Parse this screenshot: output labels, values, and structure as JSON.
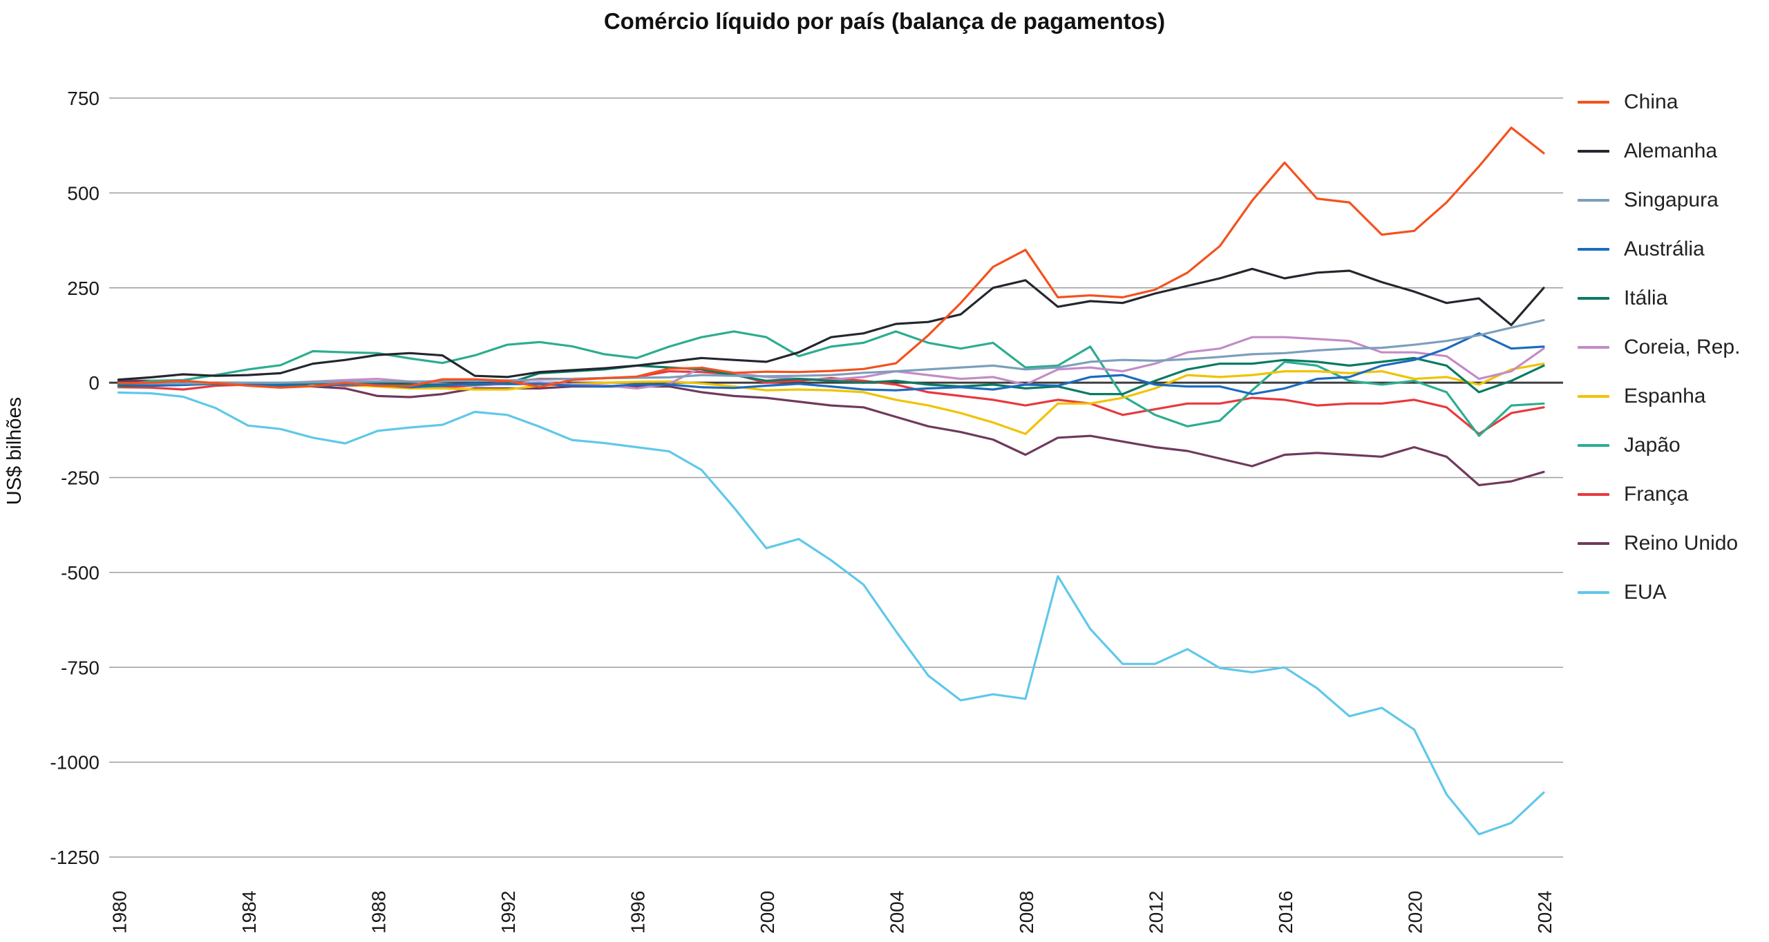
{
  "chart_data": {
    "type": "line",
    "title": "Comércio líquido por país (balança de pagamentos)",
    "ylabel": "US$ bilhões",
    "x_start": 1980,
    "x_end": 2024,
    "x_tick_labels": [
      1980,
      1984,
      1988,
      1992,
      1996,
      2000,
      2004,
      2008,
      2012,
      2016,
      2020,
      2024
    ],
    "y_ticks": [
      750,
      500,
      250,
      0,
      -250,
      -500,
      -750,
      -1000,
      -1250
    ],
    "ylim": [
      -1250,
      750
    ],
    "grid": true,
    "legend_position": "right",
    "colors": {
      "background": "#FFFFFF",
      "gridline": "#9d9d9d",
      "zero_line": "#3d3d3d",
      "text": "#1a1a1a"
    },
    "series": [
      {
        "name": "China",
        "color": "#F4511E",
        "values": [
          -2,
          0,
          5,
          -1,
          -8,
          -13,
          -9,
          -1,
          -8,
          -9,
          9,
          9,
          5,
          -11,
          7,
          12,
          16,
          37,
          39,
          26,
          29,
          28,
          31,
          36,
          51,
          125,
          210,
          305,
          350,
          225,
          230,
          225,
          245,
          290,
          360,
          480,
          580,
          485,
          475,
          390,
          400,
          475,
          570,
          672,
          605
        ]
      },
      {
        "name": "Alemanha",
        "color": "#23272E",
        "values": [
          8,
          14,
          22,
          18,
          20,
          25,
          50,
          60,
          73,
          78,
          72,
          18,
          15,
          28,
          33,
          38,
          45,
          55,
          65,
          60,
          55,
          80,
          120,
          130,
          155,
          160,
          180,
          250,
          270,
          200,
          215,
          210,
          235,
          255,
          275,
          300,
          275,
          290,
          295,
          265,
          240,
          210,
          222,
          152,
          250
        ]
      },
      {
        "name": "Singapura",
        "color": "#7C9FBC",
        "values": [
          -1,
          -2,
          -2,
          -1,
          0,
          0,
          1,
          2,
          3,
          3,
          4,
          5,
          6,
          8,
          10,
          12,
          13,
          14,
          20,
          18,
          17,
          18,
          20,
          26,
          30,
          35,
          40,
          45,
          35,
          40,
          55,
          60,
          58,
          62,
          68,
          75,
          78,
          85,
          90,
          92,
          100,
          110,
          125,
          145,
          165
        ]
      },
      {
        "name": "Austrália",
        "color": "#1C6BBF",
        "values": [
          -4,
          -8,
          -6,
          -2,
          -4,
          -8,
          -9,
          -5,
          -6,
          -12,
          -8,
          -2,
          -4,
          -3,
          -8,
          -10,
          -5,
          -5,
          -12,
          -14,
          -8,
          -3,
          -10,
          -18,
          -20,
          -15,
          -12,
          -18,
          -5,
          -8,
          15,
          20,
          -5,
          -10,
          -10,
          -30,
          -15,
          10,
          15,
          45,
          60,
          90,
          130,
          90,
          95
        ]
      },
      {
        "name": "Itália",
        "color": "#0B7A63",
        "values": [
          -8,
          -8,
          -6,
          -3,
          -6,
          -6,
          -2,
          -2,
          -4,
          -6,
          -5,
          -5,
          -2,
          25,
          30,
          35,
          45,
          40,
          35,
          20,
          5,
          10,
          5,
          0,
          5,
          -5,
          -10,
          -5,
          -15,
          -10,
          -30,
          -30,
          5,
          35,
          50,
          50,
          60,
          55,
          45,
          55,
          65,
          45,
          -25,
          5,
          45
        ]
      },
      {
        "name": "Coreia, Rep.",
        "color": "#C38CC6",
        "values": [
          -5,
          -4,
          -2,
          -1,
          -1,
          -1,
          3,
          7,
          10,
          3,
          -3,
          -8,
          -3,
          1,
          -4,
          -7,
          -15,
          -3,
          40,
          25,
          15,
          10,
          8,
          15,
          30,
          20,
          10,
          15,
          -5,
          35,
          40,
          30,
          50,
          80,
          90,
          120,
          120,
          115,
          110,
          80,
          80,
          70,
          10,
          30,
          90
        ]
      },
      {
        "name": "Espanha",
        "color": "#F0C300",
        "values": [
          -5,
          -5,
          -5,
          -3,
          0,
          0,
          -2,
          -6,
          -10,
          -15,
          -15,
          -18,
          -18,
          -8,
          -3,
          0,
          2,
          3,
          -2,
          -10,
          -20,
          -18,
          -20,
          -25,
          -45,
          -60,
          -80,
          -105,
          -135,
          -55,
          -55,
          -40,
          -15,
          20,
          15,
          20,
          30,
          30,
          25,
          30,
          10,
          15,
          -5,
          35,
          50
        ]
      },
      {
        "name": "Japão",
        "color": "#2CAD90",
        "values": [
          -10,
          5,
          7,
          20,
          35,
          46,
          83,
          80,
          78,
          64,
          52,
          72,
          100,
          107,
          96,
          75,
          65,
          95,
          120,
          135,
          120,
          70,
          95,
          105,
          135,
          105,
          90,
          105,
          40,
          45,
          95,
          -35,
          -85,
          -115,
          -100,
          -20,
          55,
          45,
          5,
          -5,
          5,
          -25,
          -140,
          -60,
          -55
        ]
      },
      {
        "name": "França",
        "color": "#E8393D",
        "values": [
          -12,
          -13,
          -18,
          -8,
          -5,
          -5,
          -2,
          -8,
          -8,
          -10,
          -12,
          -8,
          2,
          10,
          10,
          12,
          15,
          30,
          28,
          22,
          0,
          5,
          12,
          5,
          -5,
          -25,
          -35,
          -45,
          -60,
          -45,
          -55,
          -85,
          -70,
          -55,
          -55,
          -40,
          -45,
          -60,
          -55,
          -55,
          -45,
          -65,
          -135,
          -80,
          -65
        ]
      },
      {
        "name": "Reino Unido",
        "color": "#70395D",
        "values": [
          5,
          5,
          3,
          -3,
          -5,
          -2,
          -10,
          -15,
          -35,
          -38,
          -30,
          -15,
          -15,
          -15,
          -10,
          -10,
          -10,
          -10,
          -25,
          -35,
          -40,
          -50,
          -60,
          -65,
          -90,
          -115,
          -130,
          -150,
          -190,
          -145,
          -140,
          -155,
          -170,
          -180,
          -200,
          -220,
          -190,
          -185,
          -190,
          -195,
          -170,
          -195,
          -270,
          -260,
          -235
        ]
      },
      {
        "name": "EUA",
        "color": "#5FC8EA",
        "values": [
          -26,
          -28,
          -37,
          -67,
          -113,
          -122,
          -145,
          -160,
          -127,
          -118,
          -111,
          -77,
          -85,
          -116,
          -151,
          -159,
          -170,
          -181,
          -230,
          -329,
          -436,
          -412,
          -468,
          -532,
          -655,
          -772,
          -837,
          -821,
          -833,
          -510,
          -649,
          -741,
          -741,
          -702,
          -752,
          -763,
          -750,
          -805,
          -879,
          -857,
          -914,
          -1085,
          -1190,
          -1160,
          -1080
        ]
      }
    ]
  }
}
